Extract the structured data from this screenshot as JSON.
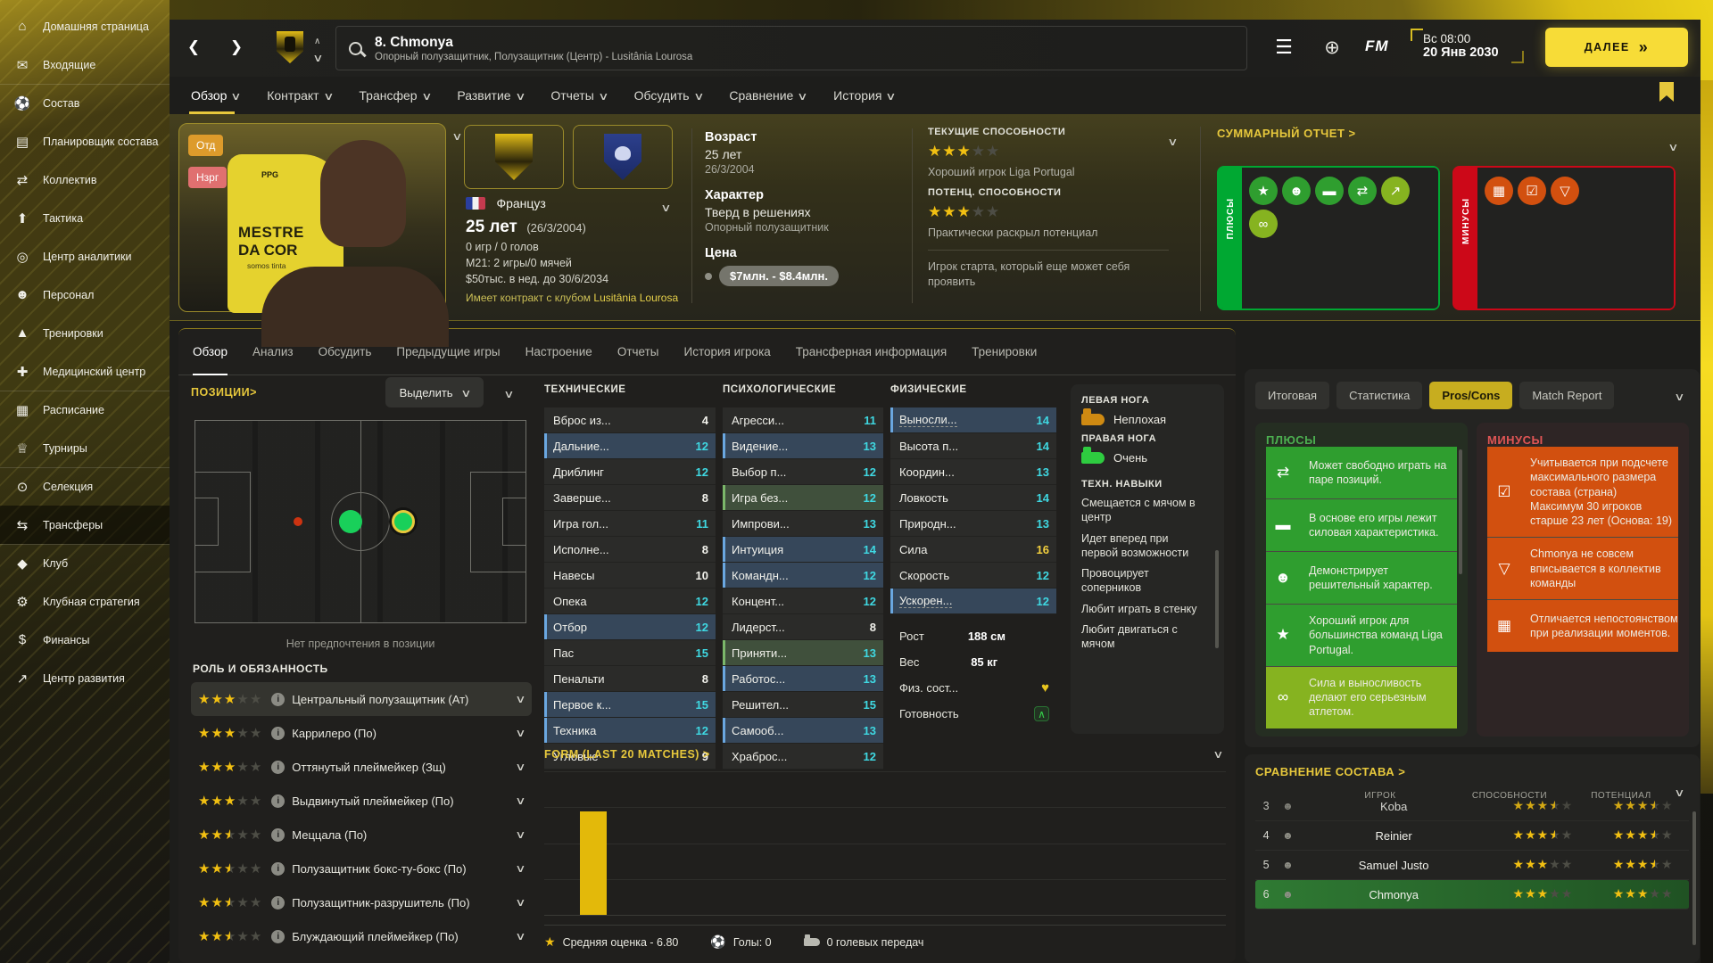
{
  "app": {
    "fm_logo": "FM",
    "time": "Вс 08:00",
    "date": "20 Янв 2030",
    "continue_label": "ДАЛЕЕ"
  },
  "header": {
    "title": "8. Chmonya",
    "subtitle": "Опорный полузащитник, Полузащитник (Центр) - Lusitânia Lourosa"
  },
  "sidebar": {
    "items": [
      {
        "label": "Домашняя страница",
        "icon": "home"
      },
      {
        "label": "Входящие",
        "icon": "inbox"
      },
      {
        "label": "Состав",
        "icon": "squad",
        "mods": [
          "sep"
        ]
      },
      {
        "label": "Планировщик состава",
        "icon": "planner"
      },
      {
        "label": "Коллектив",
        "icon": "collective"
      },
      {
        "label": "Тактика",
        "icon": "tactics"
      },
      {
        "label": "Центр аналитики",
        "icon": "analytics"
      },
      {
        "label": "Персонал",
        "icon": "staff"
      },
      {
        "label": "Тренировки",
        "icon": "training"
      },
      {
        "label": "Медицинский центр",
        "icon": "medical"
      },
      {
        "label": "Расписание",
        "icon": "schedule",
        "mods": [
          "sep"
        ]
      },
      {
        "label": "Турниры",
        "icon": "competitions"
      },
      {
        "label": "Селекция",
        "icon": "scouting",
        "mods": [
          "sep"
        ]
      },
      {
        "label": "Трансферы",
        "icon": "transfers",
        "mods": [
          "active"
        ]
      },
      {
        "label": "Клуб",
        "icon": "club",
        "mods": [
          "sep"
        ]
      },
      {
        "label": "Клубная стратегия",
        "icon": "strategy"
      },
      {
        "label": "Финансы",
        "icon": "finances"
      },
      {
        "label": "Центр развития",
        "icon": "development"
      }
    ]
  },
  "nav_tabs": [
    {
      "label": "Обзор",
      "mods": [
        "active"
      ]
    },
    {
      "label": "Контракт"
    },
    {
      "label": "Трансфер"
    },
    {
      "label": "Развитие"
    },
    {
      "label": "Отчеты"
    },
    {
      "label": "Обсудить"
    },
    {
      "label": "Сравнение"
    },
    {
      "label": "История"
    }
  ],
  "player": {
    "badges": {
      "first": "Отд",
      "second": "Нзрг"
    },
    "jersey": {
      "sponsor": "PPG",
      "line1": "MESTRE",
      "line2": "DA COR",
      "line3": "somos tinta"
    },
    "nationality": "Француз",
    "age_big": "25 лет",
    "age_birth": "(26/3/2004)",
    "caps": "0 игр / 0 голов",
    "u21": "М21: 2 игры/0 мячей",
    "wage": "$50тыс. в нед. до 30/6/2034",
    "contract_prefix": "Имеет контракт с клубом ",
    "contract_club": "Lusitânia Lourosa",
    "info": {
      "age_label": "Возраст",
      "age": "25 лет",
      "age_date": "26/3/2004",
      "char_label": "Характер",
      "char": "Тверд в решениях",
      "char_sub": "Опорный полузащитник",
      "price_label": "Цена",
      "price": "$7млн. - $8.4млн."
    },
    "ability": {
      "current_label": "ТЕКУЩИЕ СПОСОБНОСТИ",
      "current_stars": 3,
      "current_desc": "Хороший игрок Liga Portugal",
      "potential_label": "ПОТЕНЦ. СПОСОБНОСТИ",
      "potential_stars": 3,
      "potential_desc": "Практически раскрыл потенциал",
      "note": "Игрок старта, который еще может себя проявить"
    }
  },
  "summary": {
    "title": "СУММАРНЫЙ ОТЧЕТ >",
    "plus_label": "ПЛЮСЫ",
    "minus_label": "МИНУСЫ",
    "plus_icons": [
      {
        "icon": "star",
        "mods": [
          "tone-g1"
        ]
      },
      {
        "icon": "head",
        "mods": [
          "tone-g1"
        ]
      },
      {
        "icon": "dumbbell",
        "mods": [
          "tone-g1"
        ]
      },
      {
        "icon": "arrows",
        "mods": [
          "tone-g1"
        ]
      },
      {
        "icon": "trend",
        "mods": [
          "tone-g2"
        ]
      },
      {
        "icon": "chain",
        "mods": [
          "tone-g2"
        ]
      }
    ],
    "minus_icons": [
      {
        "icon": "goal",
        "mods": [
          "tone-r1"
        ]
      },
      {
        "icon": "doc",
        "mods": [
          "tone-r1"
        ]
      },
      {
        "icon": "flask",
        "mods": [
          "tone-r1"
        ]
      }
    ]
  },
  "sub_tabs": [
    {
      "label": "Обзор",
      "mods": [
        "active"
      ]
    },
    {
      "label": "Анализ"
    },
    {
      "label": "Обсудить"
    },
    {
      "label": "Предыдущие игры"
    },
    {
      "label": "Настроение"
    },
    {
      "label": "Отчеты"
    },
    {
      "label": "История игрока"
    },
    {
      "label": "Трансферная информация"
    },
    {
      "label": "Тренировки"
    }
  ],
  "positions": {
    "title": "ПОЗИЦИИ>",
    "highlight_label": "Выделить",
    "no_pref": "Нет предпочтения в позиции",
    "roles_title": "РОЛЬ И ОБЯЗАННОСТЬ"
  },
  "roles": [
    {
      "stars": 3,
      "label": "Центральный полузащитник (Ат)",
      "mods": [
        "active"
      ]
    },
    {
      "stars": 3,
      "label": "Каррилеро (По)"
    },
    {
      "stars": 3,
      "label": "Оттянутый плеймейкер (Зщ)"
    },
    {
      "stars": 3,
      "label": "Выдвинутый плеймейкер (По)"
    },
    {
      "stars": 2.5,
      "label": "Меццала (По)"
    },
    {
      "stars": 2.5,
      "label": "Полузащитник бокс-ту-бокс (По)"
    },
    {
      "stars": 2.5,
      "label": "Полузащитник-разрушитель (По)"
    },
    {
      "stars": 2.5,
      "label": "Блуждающий плеймейкер (По)"
    }
  ],
  "attributes": {
    "technical_title": "ТЕХНИЧЕСКИЕ",
    "mental_title": "ПСИХОЛОГИЧЕСКИЕ",
    "physical_title": "ФИЗИЧЕСКИЕ",
    "technical": [
      {
        "n": "Вброс из...",
        "v": 4
      },
      {
        "n": "Дальние...",
        "v": 12,
        "mods": [
          "hl-blue"
        ]
      },
      {
        "n": "Дриблинг",
        "v": 12
      },
      {
        "n": "Заверше...",
        "v": 8
      },
      {
        "n": "Игра гол...",
        "v": 11
      },
      {
        "n": "Исполне...",
        "v": 8
      },
      {
        "n": "Навесы",
        "v": 10
      },
      {
        "n": "Опека",
        "v": 12
      },
      {
        "n": "Отбор",
        "v": 12,
        "mods": [
          "hl-blue"
        ]
      },
      {
        "n": "Пас",
        "v": 15
      },
      {
        "n": "Пенальти",
        "v": 8
      },
      {
        "n": "Первое к...",
        "v": 15,
        "mods": [
          "hl-blue"
        ]
      },
      {
        "n": "Техника",
        "v": 12,
        "mods": [
          "hl-blue"
        ]
      },
      {
        "n": "Угловые",
        "v": 9
      }
    ],
    "mental": [
      {
        "n": "Агресси...",
        "v": 11
      },
      {
        "n": "Видение...",
        "v": 13,
        "mods": [
          "hl-blue"
        ]
      },
      {
        "n": "Выбор п...",
        "v": 12
      },
      {
        "n": "Игра без...",
        "v": 12,
        "mods": [
          "hl-green"
        ]
      },
      {
        "n": "Импрови...",
        "v": 13
      },
      {
        "n": "Интуиция",
        "v": 14,
        "mods": [
          "hl-blue"
        ]
      },
      {
        "n": "Командн...",
        "v": 12,
        "mods": [
          "hl-blue"
        ]
      },
      {
        "n": "Концент...",
        "v": 12
      },
      {
        "n": "Лидерст...",
        "v": 8
      },
      {
        "n": "Приняти...",
        "v": 13,
        "mods": [
          "hl-green"
        ]
      },
      {
        "n": "Работос...",
        "v": 13,
        "mods": [
          "hl-blue"
        ]
      },
      {
        "n": "Решител...",
        "v": 15
      },
      {
        "n": "Самооб...",
        "v": 13,
        "mods": [
          "hl-blue"
        ]
      },
      {
        "n": "Храброс...",
        "v": 12
      }
    ],
    "physical": [
      {
        "n": "Выносли...",
        "v": 14,
        "mods": [
          "hl-blue",
          "dashed"
        ]
      },
      {
        "n": "Высота п...",
        "v": 14
      },
      {
        "n": "Координ...",
        "v": 13
      },
      {
        "n": "Ловкость",
        "v": 14
      },
      {
        "n": "Природн...",
        "v": 13
      },
      {
        "n": "Сила",
        "v": 16
      },
      {
        "n": "Скорость",
        "v": 12
      },
      {
        "n": "Ускорен...",
        "v": 12,
        "mods": [
          "hl-blue",
          "dashed"
        ]
      }
    ],
    "extra": [
      {
        "n": "Рост",
        "v": "188 см"
      },
      {
        "n": "Вес",
        "v": "85 кг"
      },
      {
        "n": "Физ. сост...",
        "icon": "heart"
      },
      {
        "n": "Готовность",
        "icon": "ready"
      }
    ]
  },
  "feet": {
    "left_label": "ЛЕВАЯ НОГА",
    "left_value": "Неплохая",
    "right_label": "ПРАВАЯ НОГА",
    "right_value": "Очень",
    "skills_title": "ТЕХН. НАВЫКИ",
    "skills": [
      {
        "t": "Смещается с мячом в центр"
      },
      {
        "t": "Идет вперед при первой возможности"
      },
      {
        "t": "Провоцирует соперников"
      },
      {
        "t": "Любит играть в стенку"
      },
      {
        "t": "Любит двигаться с мячом"
      }
    ]
  },
  "form": {
    "title": "FORM (LAST 20 MATCHES) >",
    "avg": "Средняя оценка - 6.80",
    "goals": "Голы: 0",
    "assists": "0 голевых передач"
  },
  "report": {
    "tabs": [
      {
        "label": "Итоговая"
      },
      {
        "label": "Статистика"
      },
      {
        "label": "Pros/Cons",
        "mods": [
          "active"
        ]
      },
      {
        "label": "Match Report"
      }
    ],
    "pros_title": "ПЛЮСЫ",
    "cons_title": "МИНУСЫ",
    "pros": [
      {
        "icon": "arrows",
        "mods": [
          "tone-g1"
        ],
        "text": "Может свободно играть на паре позиций."
      },
      {
        "icon": "dumbbell",
        "mods": [
          "tone-g1"
        ],
        "text": "В основе его игры лежит силовая характеристика."
      },
      {
        "icon": "head",
        "mods": [
          "tone-g1"
        ],
        "text": "Демонстрирует решительный характер."
      },
      {
        "icon": "star",
        "mods": [
          "tone-g1"
        ],
        "text": "Хороший игрок для большинства команд Liga Portugal."
      },
      {
        "icon": "chain",
        "mods": [
          "tone-g2"
        ],
        "text": "Сила и выносливость делают его серьезным атлетом."
      }
    ],
    "cons": [
      {
        "icon": "doc",
        "mods": [
          "tone-r1"
        ],
        "text": "Учитывается при подсчете максимального размера состава (страна)\nМаксимум 30 игроков старше 23 лет (Основа: 19)"
      },
      {
        "icon": "flask",
        "mods": [
          "tone-r1"
        ],
        "text": "Chmonya не совсем вписывается в коллектив команды"
      },
      {
        "icon": "goal",
        "mods": [
          "tone-r1"
        ],
        "text": "Отличается непостоянством при реализации моментов."
      }
    ]
  },
  "comparison": {
    "title": "СРАВНЕНИЕ СОСТАВА >",
    "col_player": "ИГРОК",
    "col_ability": "СПОСОБНОСТИ",
    "col_potential": "ПОТЕНЦИАЛ",
    "rows": [
      {
        "num": 3,
        "name": "Koba",
        "ability": 3.5,
        "potential": 3.5,
        "mods": [
          "clip"
        ]
      },
      {
        "num": 4,
        "name": "Reinier",
        "ability": 3.5,
        "potential": 3.5
      },
      {
        "num": 5,
        "name": "Samuel Justo",
        "ability": 3,
        "potential": 3.5
      },
      {
        "num": 6,
        "name": "Chmonya",
        "ability": 3,
        "potential": 3,
        "mods": [
          "sel"
        ]
      }
    ]
  }
}
